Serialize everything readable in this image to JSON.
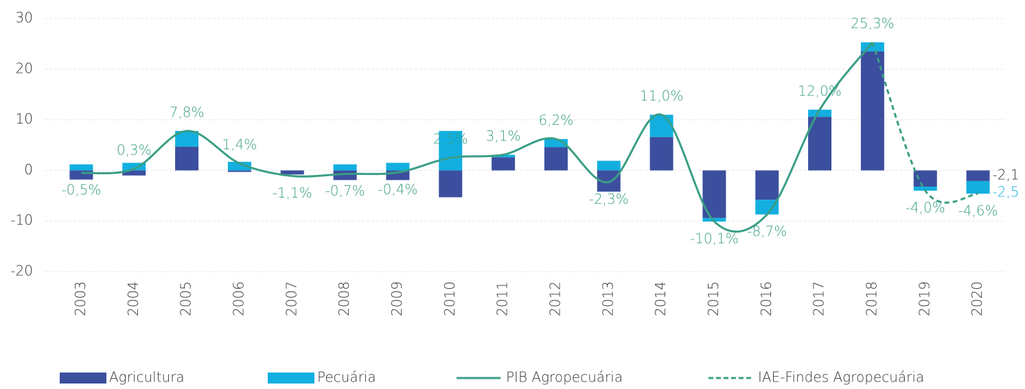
{
  "chart_data": {
    "type": "bar_line",
    "categories": [
      "2003",
      "2004",
      "2005",
      "2006",
      "2007",
      "2008",
      "2009",
      "2010",
      "2011",
      "2012",
      "2013",
      "2014",
      "2015",
      "2016",
      "2017",
      "2018",
      "2019",
      "2020"
    ],
    "series": [
      {
        "name": "Agricultura",
        "type": "bar",
        "color": "#3b4f9e",
        "values": [
          -1.8,
          -1.0,
          4.7,
          -0.3,
          -0.8,
          -1.9,
          -1.9,
          -5.3,
          2.6,
          4.6,
          -4.2,
          6.6,
          -9.4,
          -5.8,
          10.6,
          23.5,
          -3.2,
          -2.1
        ],
        "value_labels": [
          null,
          null,
          null,
          null,
          null,
          null,
          null,
          null,
          null,
          null,
          null,
          null,
          null,
          null,
          null,
          null,
          null,
          "-2,1"
        ]
      },
      {
        "name": "Pecuária",
        "type": "bar",
        "color": "#12afe0",
        "values": [
          1.2,
          1.5,
          3.1,
          1.7,
          0,
          1.2,
          1.5,
          7.8,
          0.5,
          1.6,
          1.9,
          4.4,
          -0.7,
          -2.9,
          1.4,
          1.8,
          -0.8,
          -2.5
        ],
        "value_labels": [
          null,
          null,
          null,
          null,
          null,
          null,
          null,
          null,
          null,
          null,
          null,
          null,
          null,
          null,
          null,
          null,
          null,
          "-2,5"
        ]
      },
      {
        "name": "PIB Agropecuária",
        "type": "line",
        "color": "#3a9e85",
        "values": [
          -0.5,
          0.3,
          7.8,
          1.4,
          -1.1,
          -0.7,
          -0.4,
          2.5,
          3.1,
          6.2,
          -2.3,
          11.0,
          -10.1,
          -8.7,
          12.0,
          25.3,
          null,
          null
        ],
        "value_labels": [
          "-0,5%",
          "0,3%",
          "7,8%",
          "1,4%",
          "-1,1%",
          "-0,7%",
          "-0,4%",
          "2,5%",
          "3,1%",
          "6,2%",
          "-2,3%",
          "11,0%",
          "-10,1%",
          "-8,7%",
          "12,0%",
          "25,3%",
          null,
          null
        ]
      },
      {
        "name": "IAE-Findes Agropecuária",
        "type": "line",
        "dashed": true,
        "color": "#3a9e85",
        "values": [
          null,
          null,
          null,
          null,
          null,
          null,
          null,
          null,
          null,
          null,
          null,
          null,
          null,
          null,
          null,
          25.3,
          -4.0,
          -4.6
        ],
        "value_labels": [
          null,
          null,
          null,
          null,
          null,
          null,
          null,
          null,
          null,
          null,
          null,
          null,
          null,
          null,
          null,
          null,
          "-4,0%",
          "-4,6%"
        ]
      }
    ],
    "ylim": [
      -20,
      30
    ],
    "yticks": [
      -20,
      -10,
      0,
      10,
      20,
      30
    ],
    "grid": true,
    "legend": "bottom"
  }
}
